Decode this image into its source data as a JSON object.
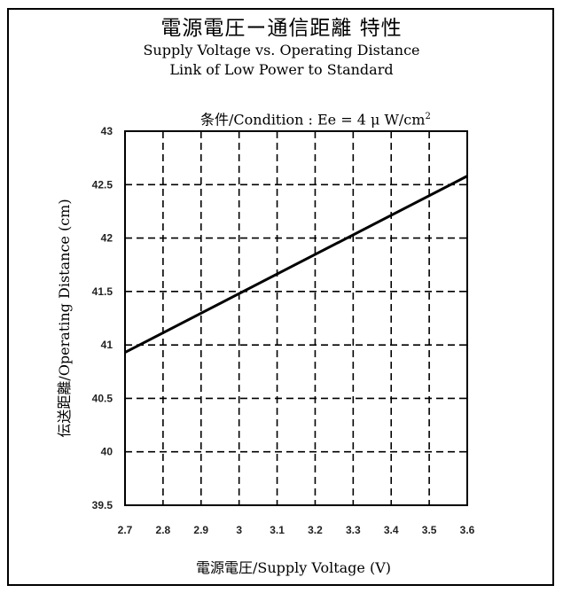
{
  "chart_data": {
    "type": "line",
    "title": "電源電圧ー通信距離 特性",
    "subtitle_1": "Supply Voltage vs. Operating Distance",
    "subtitle_2": "Link of Low Power to Standard",
    "condition": "条件/Condition : Ee = 4 μ W/cm",
    "condition_sup": "2",
    "xlabel": "電源電圧/Supply Voltage (V)",
    "ylabel": "伝送距離/Operating Distance (cm)",
    "xlim": [
      2.7,
      3.6
    ],
    "ylim": [
      39.5,
      43
    ],
    "x_ticks": [
      "2.7",
      "2.8",
      "2.9",
      "3",
      "3.1",
      "3.2",
      "3.3",
      "3.4",
      "3.5",
      "3.6"
    ],
    "y_ticks": [
      "39.5",
      "40",
      "40.5",
      "41",
      "41.5",
      "42",
      "42.5",
      "43"
    ],
    "grid": true,
    "series": [
      {
        "x": [
          2.7,
          3.6
        ],
        "y": [
          40.93,
          42.58
        ]
      }
    ],
    "colors": {
      "line": "#000000",
      "grid": "#000000"
    }
  }
}
